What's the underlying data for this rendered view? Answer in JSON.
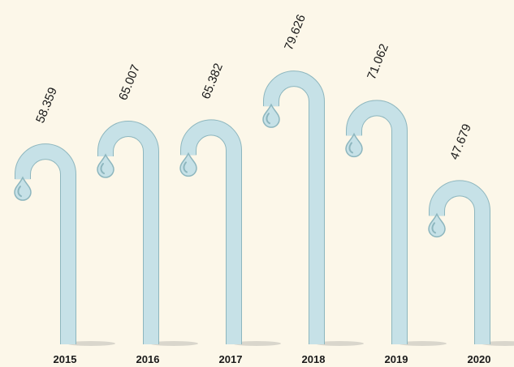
{
  "chart_data": {
    "type": "pictorial-bar",
    "categories": [
      "2015",
      "2016",
      "2017",
      "2018",
      "2019",
      "2020"
    ],
    "values": [
      58.359,
      65.007,
      65.382,
      79.626,
      71.062,
      47.679
    ],
    "color": "#c6e1e7"
  }
}
